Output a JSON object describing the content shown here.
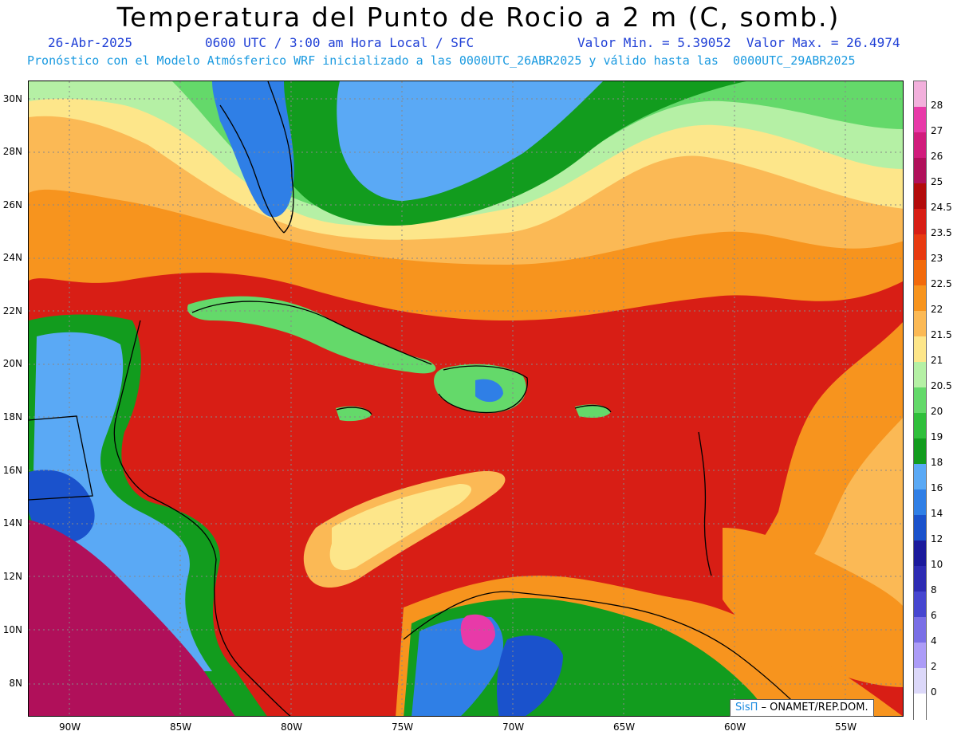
{
  "header": {
    "title": "Temperatura del Punto de Rocio a 2 m (C, somb.)",
    "date": "26-Abr-2025",
    "time": "0600 UTC / 3:00 am Hora Local / SFC",
    "min_max": "Valor Min. = 5.39052  Valor Max. = 26.4974",
    "model_info": "Pronóstico con el Modelo Atmósferico WRF inicializado a las 0000UTC_26ABR2025 y válido hasta las  0000UTC_29ABR2025"
  },
  "axes": {
    "y_labels": [
      "30N",
      "28N",
      "26N",
      "24N",
      "22N",
      "20N",
      "18N",
      "16N",
      "14N",
      "12N",
      "10N",
      "8N"
    ],
    "x_labels": [
      "90W",
      "85W",
      "80W",
      "75W",
      "70W",
      "65W",
      "60W",
      "55W"
    ]
  },
  "colorbar": {
    "labels": [
      "28",
      "27",
      "26",
      "25",
      "24.5",
      "23.5",
      "23",
      "22.5",
      "22",
      "21.5",
      "21",
      "20.5",
      "20",
      "19",
      "18",
      "16",
      "14",
      "12",
      "10",
      "8",
      "6",
      "4",
      "2",
      "0"
    ],
    "colors": [
      "#f2b0dc",
      "#e83aa8",
      "#d11c7c",
      "#b0105a",
      "#b30b0b",
      "#d81e15",
      "#e83a10",
      "#f26a0c",
      "#f7941e",
      "#fbb955",
      "#fde68a",
      "#b5f0a5",
      "#64d96a",
      "#2fbf3b",
      "#129c1e",
      "#5aa9f5",
      "#2f7fe6",
      "#1a52cc",
      "#1b1a9c",
      "#2d2bb3",
      "#4646d0",
      "#7a6fe6",
      "#ac9cf7",
      "#dcd8f9",
      "#ffffff"
    ]
  },
  "credit": {
    "logo": "SisΠ",
    "text": " – ONAMET/REP.DOM."
  }
}
